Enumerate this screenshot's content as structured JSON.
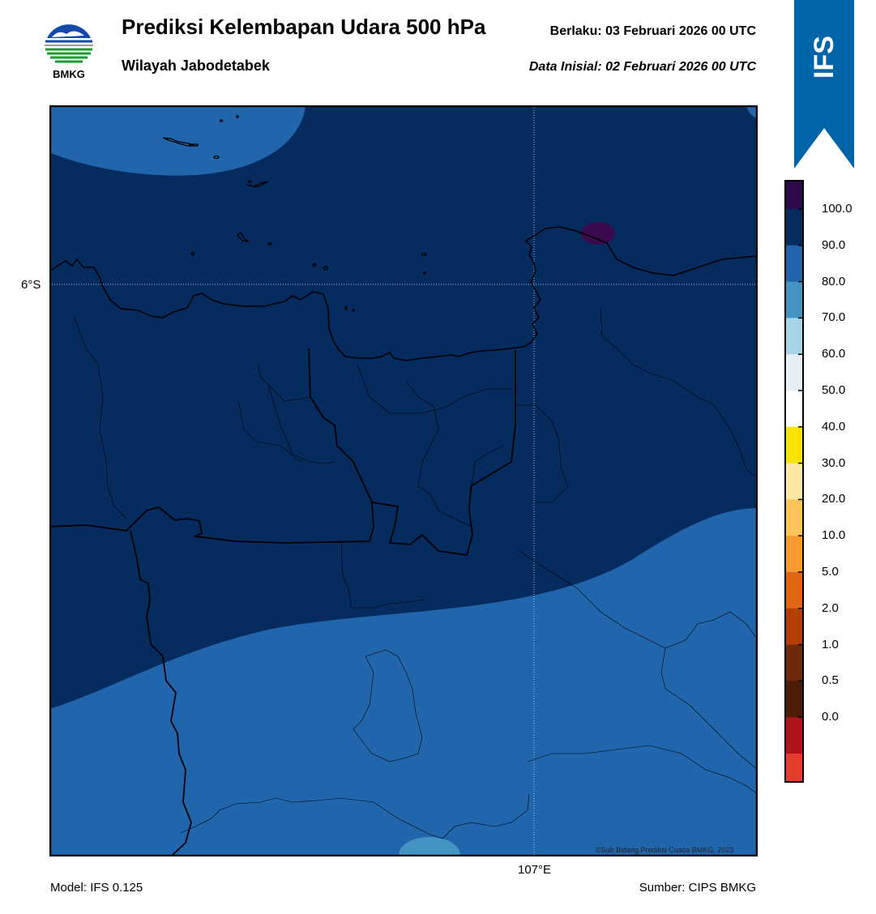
{
  "header": {
    "title": "Prediksi Kelembapan Udara 500 hPa",
    "subtitle": "Wilayah Jabodetabek",
    "valid_label": "Berlaku:  03 Februari 2026 00 UTC",
    "init_label": "Data Inisial:  02 Februari 2026 00 UTC"
  },
  "logo": {
    "text": "BMKG"
  },
  "badge": {
    "text": "IFS",
    "color": "#0065a8"
  },
  "map": {
    "lat_label": "6°S",
    "lon_label": "107°E",
    "copyright": "©Sub Bidang Prediksi Cuaca BMKG, 2023",
    "colors": {
      "humidity_90_100": "#062b5e",
      "humidity_80_90": "#2166ad",
      "humidity_70_80": "#4393c3",
      "humidity_above_100": "#3b0a4d"
    }
  },
  "colorbar": {
    "labels": [
      "100.0",
      "90.0",
      "80.0",
      "70.0",
      "60.0",
      "50.0",
      "40.0",
      "30.0",
      "20.0",
      "10.0",
      "5.0",
      "2.0",
      "1.0",
      "0.5",
      "0.0"
    ],
    "colors": [
      "#2d0a4b",
      "#062b5e",
      "#2166ad",
      "#4393c3",
      "#a6d4e8",
      "#e3eef6",
      "#ffffff",
      "#f8e300",
      "#fce8a4",
      "#fdc45a",
      "#f99a2e",
      "#e16513",
      "#b34006",
      "#6f2a0c",
      "#4d1c07",
      "#b0141a",
      "#e53c2e"
    ]
  },
  "footer": {
    "model": "Model: IFS 0.125",
    "source": "Sumber: CIPS BMKG"
  }
}
